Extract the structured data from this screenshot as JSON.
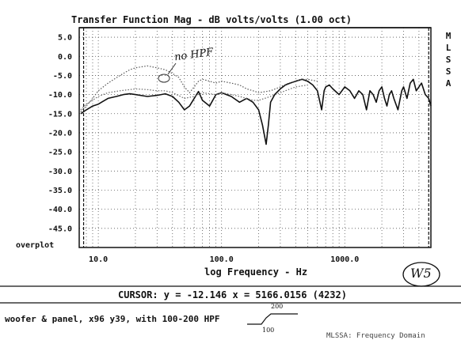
{
  "chart_data": {
    "type": "line",
    "title": "Transfer Function Mag - dB volts/volts (1.00 oct)",
    "xlabel": "log Frequency - Hz",
    "ylabel": "",
    "xscale": "log",
    "xlim": [
      7,
      5000
    ],
    "ylim": [
      -50,
      7.5
    ],
    "grid": true,
    "x_ticks": [
      10,
      100,
      1000
    ],
    "x_tick_labels": [
      "10.0",
      "100.0",
      "1000.0"
    ],
    "y_ticks": [
      5,
      0,
      -5,
      -10,
      -15,
      -20,
      -25,
      -30,
      -35,
      -40,
      -45
    ],
    "y_tick_labels": [
      "5.0",
      "0.0",
      "-5.0",
      "-10.0",
      "-15.0",
      "-20.0",
      "-25.0",
      "-30.0",
      "-35.0",
      "-40.0",
      "-45.0"
    ],
    "series": [
      {
        "style": "solid",
        "color": "#111111",
        "x": [
          7.2,
          8,
          9,
          10,
          12,
          14,
          16,
          18,
          20,
          25,
          30,
          35,
          40,
          45,
          50,
          55,
          60,
          65,
          70,
          80,
          90,
          100,
          120,
          140,
          160,
          180,
          200,
          215,
          230,
          240,
          250,
          270,
          300,
          330,
          360,
          400,
          450,
          500,
          550,
          600,
          650,
          680,
          700,
          750,
          800,
          900,
          1000,
          1100,
          1200,
          1300,
          1400,
          1500,
          1600,
          1700,
          1800,
          1900,
          2000,
          2100,
          2200,
          2300,
          2400,
          2500,
          2700,
          2900,
          3000,
          3200,
          3400,
          3600,
          3800,
          4000,
          4200,
          4500,
          4800,
          5000
        ],
        "y": [
          -15,
          -14,
          -13,
          -12.5,
          -11,
          -10.5,
          -10,
          -9.8,
          -10,
          -10.5,
          -10.2,
          -9.8,
          -10.5,
          -12,
          -14,
          -13,
          -11,
          -9.2,
          -11.5,
          -13,
          -10,
          -9.5,
          -10.5,
          -12,
          -11,
          -12,
          -14,
          -18,
          -23,
          -18,
          -12,
          -10,
          -8.5,
          -7.5,
          -7,
          -6.5,
          -6,
          -6.5,
          -7.5,
          -9,
          -14,
          -9,
          -8,
          -7.5,
          -8.5,
          -10,
          -8,
          -9,
          -11,
          -9,
          -10,
          -14,
          -9,
          -10,
          -12,
          -9,
          -8,
          -11,
          -13,
          -10,
          -9,
          -11,
          -14,
          -9,
          -8,
          -11,
          -7,
          -6,
          -9,
          -8,
          -7,
          -10,
          -11,
          -13
        ]
      },
      {
        "style": "dotted",
        "color": "#555555",
        "x": [
          7.2,
          8,
          9,
          10,
          12,
          15,
          18,
          20,
          25,
          30,
          35,
          40,
          45,
          50,
          55,
          60,
          65,
          70,
          80,
          90,
          100,
          120,
          140,
          160,
          180,
          200,
          250,
          300,
          350,
          400,
          450,
          500,
          600
        ],
        "y": [
          -14.5,
          -13,
          -11,
          -9,
          -7,
          -5,
          -3.5,
          -3,
          -2.5,
          -3,
          -3.5,
          -4.5,
          -5.5,
          -8,
          -9.5,
          -8,
          -6.5,
          -6,
          -6.5,
          -7,
          -6.5,
          -7,
          -7.5,
          -8.5,
          -9,
          -9.5,
          -9,
          -8,
          -7,
          -6.5,
          -6,
          -6,
          -6.5
        ]
      },
      {
        "style": "dotted",
        "color": "#666666",
        "x": [
          7.2,
          8,
          10,
          12,
          15,
          18,
          20,
          25,
          30,
          35,
          40,
          50,
          60,
          70,
          80,
          90,
          100,
          120,
          140,
          160,
          180,
          200,
          250,
          300,
          400,
          500
        ],
        "y": [
          -14,
          -12.5,
          -10.5,
          -9.5,
          -9,
          -8.7,
          -8.5,
          -8.7,
          -9,
          -9,
          -9.5,
          -11,
          -10.5,
          -9.5,
          -9.8,
          -10,
          -9.5,
          -10,
          -10.5,
          -11,
          -11.5,
          -11.5,
          -10.5,
          -9.5,
          -8,
          -7.5
        ]
      }
    ],
    "markers": [
      {
        "x": 7.6,
        "style": "dashed"
      },
      {
        "x": 4800,
        "style": "dashed"
      }
    ],
    "annotations": [
      {
        "text": "no HPF",
        "x": 35,
        "y": -3.5,
        "handwritten": true
      }
    ]
  },
  "side_letters": [
    "M",
    "L",
    "S",
    "S",
    "A"
  ],
  "overplot_label": "overplot",
  "cursor_readout": "CURSOR: y = -12.146 x = 5166.0156 (4232)",
  "caption": "woofer & panel, x96 y39, with 100-200 HPF",
  "filter_sketch": {
    "upper_label": "200",
    "lower_label": "100"
  },
  "stamp": "W5",
  "footer_partial": "MLSSA: Frequency Domain"
}
